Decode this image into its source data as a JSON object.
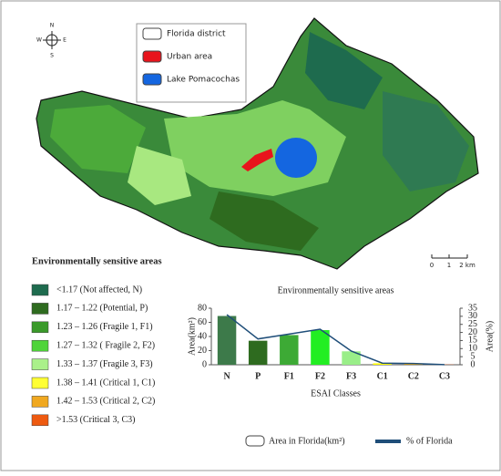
{
  "map": {
    "compass": {
      "n": "N",
      "s": "S",
      "e": "E",
      "w": "W"
    },
    "legend": [
      {
        "label": "Florida district",
        "color": "#ffffff"
      },
      {
        "label": "Urban area",
        "color": "#e8141c"
      },
      {
        "label": "Lake Pomacochas",
        "color": "#1466e0"
      }
    ],
    "scale": [
      "0",
      "1",
      "2 km"
    ]
  },
  "esa_legend": {
    "title": "Environmentally sensitive areas",
    "items": [
      {
        "label": "<1.17 (Not affected, N)",
        "color": "#1e6b4e"
      },
      {
        "label": "1.17 – 1.22 (Potential, P)",
        "color": "#2e6b1f"
      },
      {
        "label": "1.23 – 1.26 (Fragile 1, F1)",
        "color": "#3a9a2a"
      },
      {
        "label": "1.27 – 1.32 ( Fragile 2, F2)",
        "color": "#4fd43a"
      },
      {
        "label": "1.33 – 1.37 (Fragile 3, F3)",
        "color": "#aaf08a"
      },
      {
        "label": "1.38 – 1.41 (Critical 1, C1)",
        "color": "#ffff33"
      },
      {
        "label": "1.42 – 1.53 (Critical 2, C2)",
        "color": "#f0a820"
      },
      {
        "label": ">1.53 (Critical 3, C3)",
        "color": "#ee5a10"
      }
    ]
  },
  "chart_data": {
    "type": "bar",
    "title": "Environmentally sensitive areas",
    "x_label": "ESAI Classes",
    "y_label": "Area(km²)",
    "y2_label": "Area(%)",
    "categories": [
      "N",
      "P",
      "F1",
      "F2",
      "F3",
      "C1",
      "C2",
      "C3"
    ],
    "series": [
      {
        "name": "Area in Florida(km²)",
        "type": "bar",
        "colors": [
          "#3d7a4a",
          "#2e6b1f",
          "#3daa35",
          "#22ee22",
          "#99ee88",
          "#ffff00",
          "#f0a800",
          "#e85a1a"
        ],
        "values": [
          69,
          34,
          42,
          49,
          19,
          2,
          1.5,
          0.3
        ]
      },
      {
        "name": "% of Florida",
        "type": "line",
        "color": "#1f4e79",
        "axis": "y2",
        "values": [
          31,
          16,
          19,
          22,
          8.5,
          1,
          0.8,
          0.1
        ]
      }
    ],
    "ylim": [
      0,
      80
    ],
    "yticks": [
      0,
      20,
      40,
      60,
      80
    ],
    "y2lim": [
      0,
      35
    ],
    "y2ticks": [
      0,
      5,
      10,
      15,
      20,
      25,
      30,
      35
    ]
  }
}
